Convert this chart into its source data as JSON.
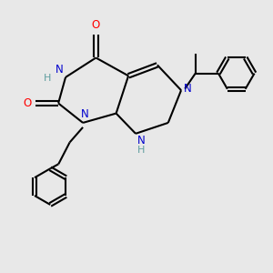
{
  "bg_color": "#e8e8e8",
  "n_color": "#0000cd",
  "o_color": "#ff0000",
  "h_color": "#5f9ea0",
  "font_size": 8.5,
  "lw": 1.5,
  "doff": 0.055,
  "xlim": [
    -3.0,
    4.2
  ],
  "ylim": [
    -4.0,
    2.5
  ]
}
